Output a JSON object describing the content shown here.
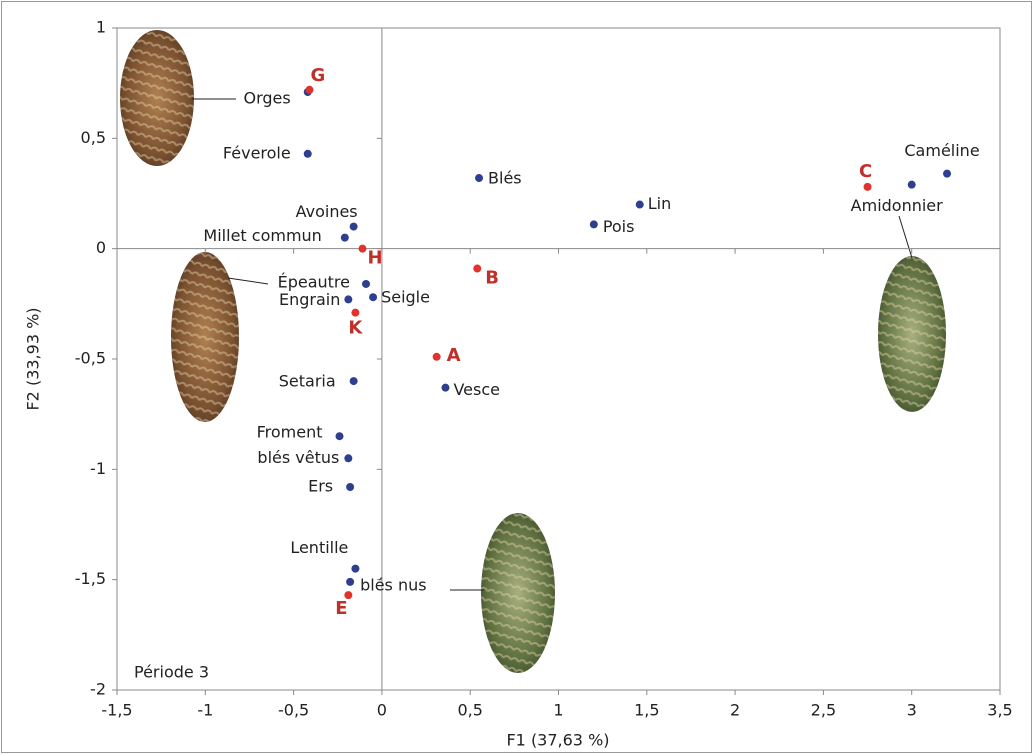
{
  "chart_data": {
    "type": "scatter",
    "xlabel": "F1 (37,63 %)",
    "ylabel": "F2 (33,93 %)",
    "annotation": "Période 3",
    "xlim": [
      -1.5,
      3.5
    ],
    "xticks": [
      {
        "value": -1.5,
        "label": "-1,5"
      },
      -1,
      {
        "value": -0.5,
        "label": "-0,5"
      },
      0,
      {
        "value": 0.5,
        "label": "0,5"
      },
      1,
      {
        "value": 1.5,
        "label": "1,5"
      },
      2,
      {
        "value": 2.5,
        "label": "2,5"
      },
      3,
      {
        "value": 3.5,
        "label": "3,5"
      }
    ],
    "ylim": [
      -2,
      1
    ],
    "yticks": [
      -2,
      {
        "value": -1.5,
        "label": "-1,5"
      },
      -1,
      {
        "value": -0.5,
        "label": "-0,5"
      },
      0,
      {
        "value": 0.5,
        "label": "0,5"
      },
      1
    ],
    "series": [
      {
        "color": "#2e3f8f",
        "labels": [
          "Orges",
          "Féverole",
          "Blés",
          "Lin",
          "Pois",
          "Caméline",
          "Amidonnier",
          "Avoines",
          "Millet commun",
          "Épeautre",
          "Engrain",
          "Seigle",
          "Setaria",
          "Vesce",
          "Froment",
          "blés vêtus",
          "Ers",
          "Lentille",
          "blés nus"
        ],
        "x": [
          -0.42,
          -0.42,
          0.55,
          1.46,
          1.2,
          3.2,
          3.0,
          -0.16,
          -0.21,
          -0.09,
          -0.19,
          -0.05,
          -0.16,
          0.36,
          -0.24,
          -0.19,
          -0.18,
          -0.15,
          -0.18
        ],
        "y": [
          0.71,
          0.43,
          0.32,
          0.2,
          0.11,
          0.34,
          0.29,
          0.1,
          0.05,
          -0.16,
          -0.23,
          -0.22,
          -0.6,
          -0.63,
          -0.85,
          -0.95,
          -1.08,
          -1.45,
          -1.51
        ]
      },
      {
        "color": "#e0332d",
        "labels": [
          "G",
          "C",
          "H",
          "B",
          "K",
          "A",
          "E"
        ],
        "x": [
          -0.41,
          2.75,
          -0.11,
          0.54,
          -0.15,
          0.31,
          -0.19
        ],
        "y": [
          0.72,
          0.28,
          0.0,
          -0.09,
          -0.29,
          -0.49,
          -1.57
        ]
      }
    ]
  }
}
